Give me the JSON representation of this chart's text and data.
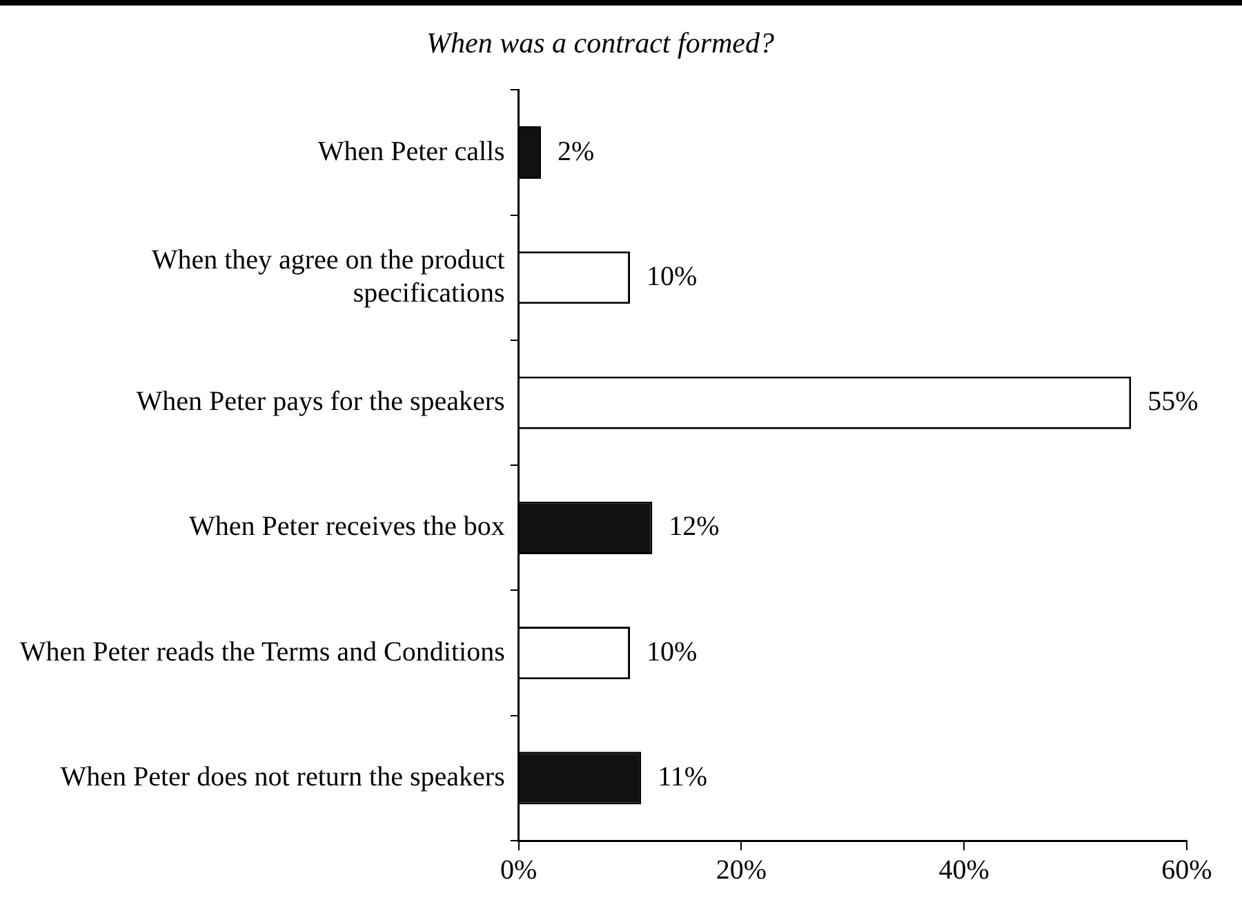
{
  "chart_data": {
    "type": "bar",
    "orientation": "horizontal",
    "title": "When was a contract formed?",
    "categories": [
      "When Peter calls",
      "When they agree on the product specifications",
      "When Peter pays for the speakers",
      "When Peter receives the box",
      "When Peter reads the Terms and Conditions",
      "When Peter does not return the speakers"
    ],
    "values": [
      2,
      10,
      55,
      12,
      10,
      11
    ],
    "colors": [
      "#111111",
      "#ffffff",
      "#ffffff",
      "#111111",
      "#ffffff",
      "#111111"
    ],
    "value_labels": [
      "2%",
      "10%",
      "55%",
      "12%",
      "10%",
      "11%"
    ],
    "xlim": [
      0,
      60
    ],
    "xticks": [
      {
        "value": 0,
        "label": "0%"
      },
      {
        "value": 20,
        "label": "20%"
      },
      {
        "value": 40,
        "label": "40%"
      },
      {
        "value": 60,
        "label": "60%"
      }
    ],
    "grid": false,
    "legend": false
  }
}
